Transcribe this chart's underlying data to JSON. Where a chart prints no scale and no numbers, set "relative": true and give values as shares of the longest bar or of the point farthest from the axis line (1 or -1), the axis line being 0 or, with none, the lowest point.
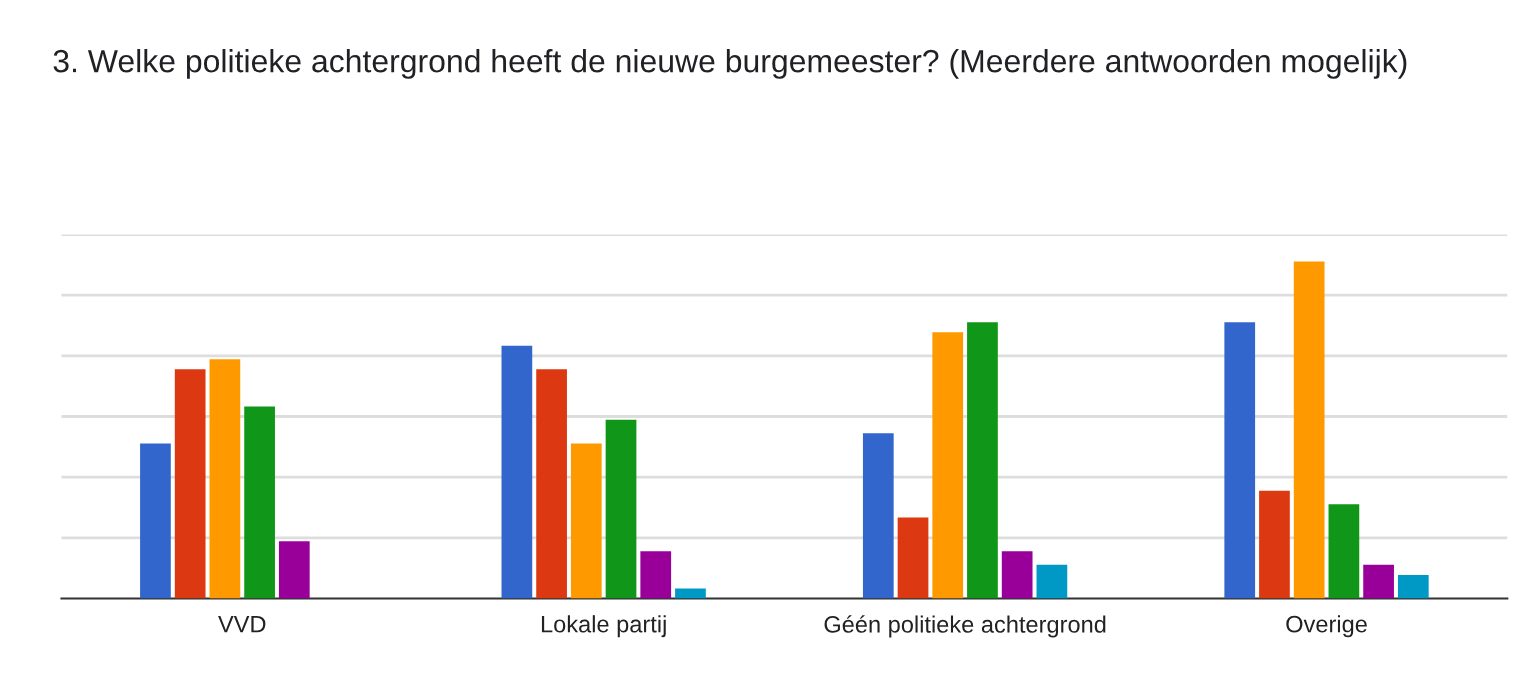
{
  "chart_data": {
    "type": "bar",
    "title": "3. Welke politieke achtergrond heeft de nieuwe burgemeester? (Meerdere antwoorden mogelijk)",
    "categories": [
      "VVD",
      "Lokale partij",
      "Géén politieke achtergrond",
      "Overige"
    ],
    "relative": true,
    "grid": "y",
    "legend": false,
    "series": [
      {
        "color": "#3366cc",
        "values": [
          0.46,
          0.75,
          0.49,
          0.82
        ]
      },
      {
        "color": "#dc3912",
        "values": [
          0.68,
          0.68,
          0.24,
          0.32
        ]
      },
      {
        "color": "#ff9900",
        "values": [
          0.71,
          0.46,
          0.79,
          1
        ]
      },
      {
        "color": "#109618",
        "values": [
          0.57,
          0.53,
          0.82,
          0.28
        ]
      },
      {
        "color": "#990099",
        "values": [
          0.17,
          0.14,
          0.14,
          0.1
        ]
      },
      {
        "color": "#0099c6",
        "values": [
          0,
          0.03,
          0.1,
          0.07
        ]
      }
    ]
  }
}
